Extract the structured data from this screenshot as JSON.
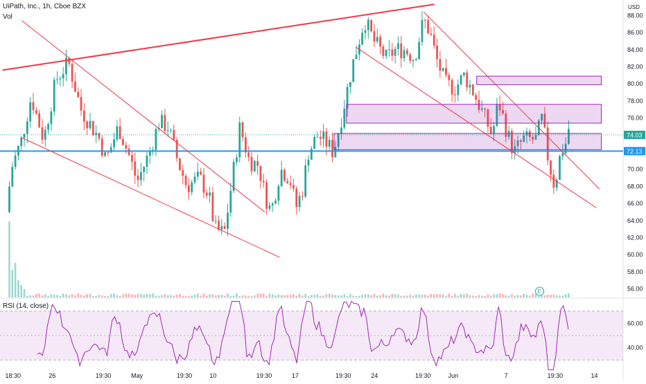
{
  "chart_data": {
    "type": "candlestick",
    "title": "UiPath, Inc., 1h, Cboe BZX",
    "volume_label": "Vol",
    "currency": "USD",
    "price_axis": {
      "ylim": [
        55.0,
        89.0
      ],
      "ticks": [
        "88.00",
        "86.00",
        "84.00",
        "82.00",
        "80.00",
        "78.00",
        "76.00",
        "74.00",
        "72.00",
        "70.00",
        "68.00",
        "66.00",
        "64.00",
        "62.00",
        "60.00",
        "58.00",
        "56.00"
      ]
    },
    "x_ticks": [
      "18:30",
      "26",
      "19:30",
      "May",
      "19:30",
      "10",
      "19:30",
      "17",
      "19:30",
      "24",
      "19:30",
      "Jun",
      "7",
      "19:30",
      "14"
    ],
    "last_price": {
      "value": 74.03,
      "label": "74.03",
      "color": "#26a69a"
    },
    "support_level": {
      "value": 72.13,
      "label": "72.13",
      "color": "#2196f3"
    },
    "zones": [
      {
        "from_x": 0.765,
        "to_x": 0.965,
        "low": 79.9,
        "high": 80.9,
        "color": "#9c27b0"
      },
      {
        "from_x": 0.556,
        "to_x": 0.965,
        "low": 75.4,
        "high": 77.6,
        "color": "#9c27b0"
      },
      {
        "from_x": 0.536,
        "to_x": 0.965,
        "low": 72.3,
        "high": 74.2,
        "color": "#9c27b0"
      }
    ],
    "trend_lines": [
      {
        "x1": 0.004,
        "p1": 81.6,
        "x2": 0.697,
        "p2": 89.3,
        "color": "#f23645",
        "thick": true
      },
      {
        "x1": 0.035,
        "p1": 87.4,
        "x2": 0.425,
        "p2": 65.0,
        "color": "#f23645",
        "thick": false
      },
      {
        "x1": 0.035,
        "p1": 73.7,
        "x2": 0.449,
        "p2": 59.7,
        "color": "#f23645",
        "thick": false
      },
      {
        "x1": 0.68,
        "p1": 88.4,
        "x2": 0.962,
        "p2": 67.7,
        "color": "#f23645",
        "thick": false
      },
      {
        "x1": 0.571,
        "p1": 84.3,
        "x2": 0.957,
        "p2": 65.5,
        "color": "#f23645",
        "thick": false
      }
    ],
    "rsi": {
      "label": "RSI (14, close)",
      "range": [
        20,
        80
      ],
      "band": [
        30,
        70
      ],
      "ticks": [
        "60.00",
        "40.00"
      ],
      "color": "#9c27b0"
    },
    "earnings_marker": "E"
  }
}
